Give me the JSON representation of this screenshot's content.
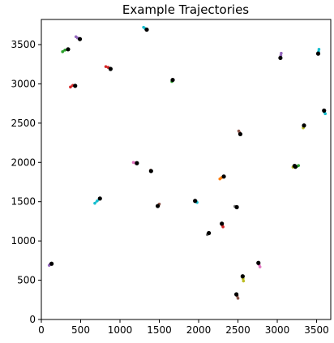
{
  "chart_data": {
    "type": "scatter",
    "title": "Example Trajectories",
    "xlabel": "",
    "ylabel": "",
    "xlim": [
      0,
      3680
    ],
    "ylim": [
      0,
      3820
    ],
    "grid": false,
    "x_ticks": [
      0,
      500,
      1000,
      1500,
      2000,
      2500,
      3000,
      3500
    ],
    "y_ticks": [
      0,
      500,
      1000,
      1500,
      2000,
      2500,
      3000,
      3500
    ],
    "endpoint_color": "#000000",
    "trajectories": [
      {
        "color": "#9467bd",
        "points": [
          [
            100,
            690
          ],
          [
            115,
            705
          ],
          [
            130,
            710
          ]
        ]
      },
      {
        "color": "#2ca02c",
        "points": [
          [
            270,
            3410
          ],
          [
            300,
            3430
          ],
          [
            340,
            3440
          ]
        ]
      },
      {
        "color": "#9467bd",
        "points": [
          [
            440,
            3600
          ],
          [
            460,
            3585
          ],
          [
            490,
            3570
          ]
        ]
      },
      {
        "color": "#d62728",
        "points": [
          [
            370,
            2960
          ],
          [
            400,
            2980
          ],
          [
            430,
            2975
          ]
        ]
      },
      {
        "color": "#d62728",
        "points": [
          [
            820,
            3220
          ],
          [
            850,
            3210
          ],
          [
            880,
            3190
          ]
        ]
      },
      {
        "color": "#17becf",
        "points": [
          [
            1300,
            3720
          ],
          [
            1320,
            3705
          ],
          [
            1340,
            3690
          ]
        ]
      },
      {
        "color": "#2ca02c",
        "points": [
          [
            1660,
            3030
          ],
          [
            1665,
            3040
          ],
          [
            1670,
            3050
          ]
        ]
      },
      {
        "color": "#e377c2",
        "points": [
          [
            1170,
            2000
          ],
          [
            1190,
            1995
          ],
          [
            1215,
            1990
          ]
        ]
      },
      {
        "color": "#8c564b",
        "points": [
          [
            1390,
            1900
          ],
          [
            1392,
            1895
          ],
          [
            1395,
            1890
          ]
        ]
      },
      {
        "color": "#17becf",
        "points": [
          [
            680,
            1480
          ],
          [
            710,
            1510
          ],
          [
            745,
            1540
          ]
        ]
      },
      {
        "color": "#8c564b",
        "points": [
          [
            1500,
            1470
          ],
          [
            1490,
            1455
          ],
          [
            1480,
            1445
          ]
        ]
      },
      {
        "color": "#17becf",
        "points": [
          [
            1980,
            1490
          ],
          [
            1970,
            1500
          ],
          [
            1955,
            1510
          ]
        ]
      },
      {
        "color": "#ff7f0e",
        "points": [
          [
            2270,
            1790
          ],
          [
            2290,
            1805
          ],
          [
            2320,
            1820
          ]
        ]
      },
      {
        "color": "#8c564b",
        "points": [
          [
            2510,
            2400
          ],
          [
            2520,
            2380
          ],
          [
            2530,
            2360
          ]
        ]
      },
      {
        "color": "#bcbd22",
        "points": [
          [
            3330,
            2440
          ],
          [
            3335,
            2455
          ],
          [
            3340,
            2470
          ]
        ]
      },
      {
        "color": "#17becf",
        "points": [
          [
            3610,
            2620
          ],
          [
            3600,
            2640
          ],
          [
            3595,
            2660
          ]
        ]
      },
      {
        "color": "#17becf",
        "points": [
          [
            3530,
            3440
          ],
          [
            3525,
            3410
          ],
          [
            3520,
            3385
          ]
        ]
      },
      {
        "color": "#9467bd",
        "points": [
          [
            3050,
            3390
          ],
          [
            3045,
            3360
          ],
          [
            3040,
            3330
          ]
        ]
      },
      {
        "color": "#2ca02c",
        "points": [
          [
            3270,
            1960
          ],
          [
            3250,
            1950
          ],
          [
            3230,
            1945
          ]
        ]
      },
      {
        "color": "#bcbd22",
        "points": [
          [
            3200,
            1940
          ],
          [
            3210,
            1950
          ],
          [
            3220,
            1955
          ]
        ]
      },
      {
        "color": "#7f7f7f",
        "points": [
          [
            2460,
            1440
          ],
          [
            2470,
            1435
          ],
          [
            2485,
            1430
          ]
        ]
      },
      {
        "color": "#d62728",
        "points": [
          [
            2310,
            1180
          ],
          [
            2300,
            1200
          ],
          [
            2295,
            1220
          ]
        ]
      },
      {
        "color": "#7f7f7f",
        "points": [
          [
            2110,
            1080
          ],
          [
            2120,
            1090
          ],
          [
            2130,
            1100
          ]
        ]
      },
      {
        "color": "#e377c2",
        "points": [
          [
            2780,
            670
          ],
          [
            2770,
            695
          ],
          [
            2760,
            720
          ]
        ]
      },
      {
        "color": "#bcbd22",
        "points": [
          [
            2570,
            490
          ],
          [
            2565,
            520
          ],
          [
            2560,
            550
          ]
        ]
      },
      {
        "color": "#8c564b",
        "points": [
          [
            2500,
            270
          ],
          [
            2490,
            300
          ],
          [
            2480,
            320
          ]
        ]
      }
    ]
  }
}
